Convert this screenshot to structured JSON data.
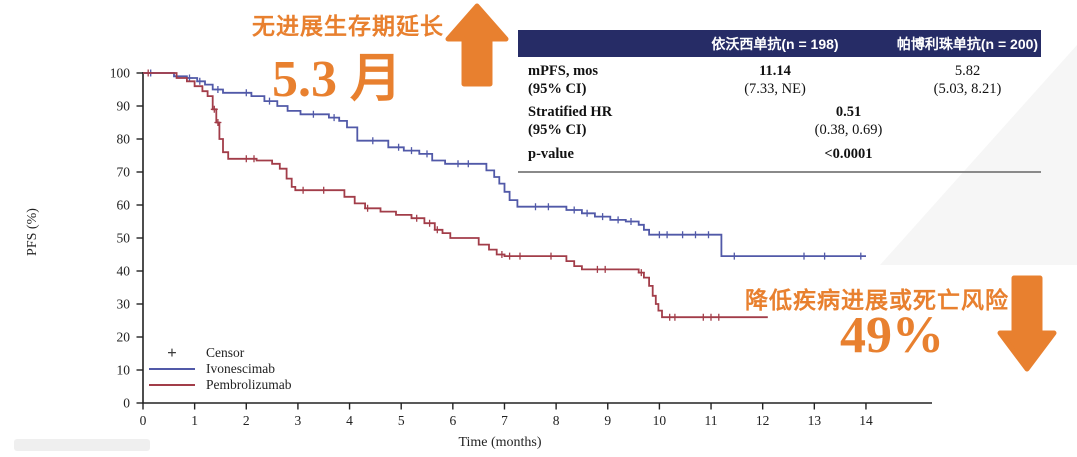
{
  "theme": {
    "orange": "#E8802F",
    "navy": "#262C66",
    "axis": "#222222",
    "table_line": "#8a8a8a"
  },
  "annotations": {
    "top": {
      "label": "无进展生存期延长",
      "value": "5.3 月",
      "direction": "up"
    },
    "bottom": {
      "label": "降低疾病进展或死亡风险",
      "value": "49%",
      "direction": "down"
    }
  },
  "table": {
    "header": {
      "col0": "",
      "col1": "依沃西单抗(n = 198)",
      "col2": "帕博利珠单抗(n = 200)"
    },
    "rows": {
      "mpfs": {
        "label": "mPFS, mos",
        "sub": "(95% CI)",
        "v1": "11.14",
        "v1sub": "(7.33, NE)",
        "v2": "5.82",
        "v2sub": "(5.03, 8.21)"
      },
      "hr": {
        "label": "Stratified HR",
        "sub": "(95% CI)",
        "value": "0.51",
        "valsub": "(0.38, 0.69)"
      },
      "p": {
        "label": "p-value",
        "value": "<0.0001"
      }
    }
  },
  "legend": {
    "items": [
      {
        "symbol": "plus",
        "label": "Censor"
      },
      {
        "symbol": "line",
        "label": "Ivonescimab"
      },
      {
        "symbol": "line",
        "label": "Pembrolizumab"
      }
    ]
  },
  "chart_data": {
    "type": "line",
    "subtype": "kaplan-meier-step",
    "title": "",
    "xlabel": "Time (months)",
    "ylabel": "PFS (%)",
    "xlim": [
      0,
      14
    ],
    "ylim": [
      0,
      100
    ],
    "x_ticks": [
      0,
      1,
      2,
      3,
      4,
      5,
      6,
      7,
      8,
      9,
      10,
      11,
      12,
      13,
      14
    ],
    "y_ticks": [
      0,
      10,
      20,
      30,
      40,
      50,
      60,
      70,
      80,
      90,
      100
    ],
    "grid": false,
    "legend_position": "inside-lower-left",
    "censor_marker": "+",
    "series": [
      {
        "name": "ivonescimab",
        "label": "Ivonescimab",
        "color": "#5159A8",
        "median_pfs_months": 11.14,
        "points": [
          [
            0,
            100
          ],
          [
            0.6,
            99
          ],
          [
            0.85,
            98.5
          ],
          [
            1.05,
            97.5
          ],
          [
            1.2,
            96.5
          ],
          [
            1.35,
            95
          ],
          [
            1.55,
            94
          ],
          [
            2.1,
            93
          ],
          [
            2.35,
            91.5
          ],
          [
            2.6,
            90
          ],
          [
            2.8,
            88.5
          ],
          [
            3.05,
            87.5
          ],
          [
            3.6,
            86.5
          ],
          [
            3.8,
            85.5
          ],
          [
            3.95,
            83.5
          ],
          [
            4.15,
            79.5
          ],
          [
            4.75,
            77.5
          ],
          [
            5.05,
            76.5
          ],
          [
            5.35,
            75.5
          ],
          [
            5.6,
            73.5
          ],
          [
            5.85,
            72.5
          ],
          [
            6.65,
            70.5
          ],
          [
            6.8,
            68.5
          ],
          [
            6.9,
            66.5
          ],
          [
            7.0,
            64
          ],
          [
            7.1,
            61.5
          ],
          [
            7.25,
            59.5
          ],
          [
            8.2,
            58.5
          ],
          [
            8.5,
            57.5
          ],
          [
            8.75,
            56.5
          ],
          [
            9.05,
            55.5
          ],
          [
            9.35,
            55
          ],
          [
            9.6,
            54
          ],
          [
            9.7,
            52.5
          ],
          [
            9.8,
            51
          ],
          [
            11.2,
            44.5
          ],
          [
            14.0,
            44.5
          ]
        ],
        "censors": [
          [
            0.15,
            100
          ],
          [
            0.9,
            98.5
          ],
          [
            1.1,
            97.5
          ],
          [
            1.45,
            95
          ],
          [
            2.0,
            94
          ],
          [
            2.45,
            91.5
          ],
          [
            3.3,
            87.5
          ],
          [
            3.7,
            86.5
          ],
          [
            4.45,
            79.5
          ],
          [
            4.95,
            77.5
          ],
          [
            5.2,
            76.5
          ],
          [
            5.5,
            75.5
          ],
          [
            6.1,
            72.5
          ],
          [
            6.3,
            72.5
          ],
          [
            7.6,
            59.5
          ],
          [
            7.85,
            59.5
          ],
          [
            8.35,
            58.5
          ],
          [
            8.6,
            57.5
          ],
          [
            8.9,
            56.5
          ],
          [
            9.2,
            55.5
          ],
          [
            9.45,
            55
          ],
          [
            10.0,
            51
          ],
          [
            10.15,
            51
          ],
          [
            10.45,
            51
          ],
          [
            10.7,
            51
          ],
          [
            10.95,
            51
          ],
          [
            11.45,
            44.5
          ],
          [
            12.8,
            44.5
          ],
          [
            13.2,
            44.5
          ],
          [
            13.9,
            44.5
          ]
        ]
      },
      {
        "name": "pembrolizumab",
        "label": "Pembrolizumab",
        "color": "#A23D49",
        "median_pfs_months": 5.82,
        "points": [
          [
            0,
            100
          ],
          [
            0.65,
            98.5
          ],
          [
            0.85,
            97.5
          ],
          [
            1.0,
            96
          ],
          [
            1.15,
            94.5
          ],
          [
            1.25,
            93
          ],
          [
            1.35,
            89
          ],
          [
            1.42,
            85
          ],
          [
            1.48,
            80
          ],
          [
            1.55,
            76
          ],
          [
            1.65,
            74
          ],
          [
            2.2,
            73.5
          ],
          [
            2.5,
            72.5
          ],
          [
            2.65,
            71
          ],
          [
            2.78,
            68
          ],
          [
            2.88,
            65.5
          ],
          [
            2.95,
            64.5
          ],
          [
            3.9,
            62.5
          ],
          [
            4.1,
            60.5
          ],
          [
            4.3,
            59
          ],
          [
            4.6,
            58
          ],
          [
            4.9,
            57
          ],
          [
            5.2,
            56
          ],
          [
            5.45,
            54.5
          ],
          [
            5.65,
            52.5
          ],
          [
            5.8,
            51.5
          ],
          [
            5.95,
            50
          ],
          [
            6.5,
            48
          ],
          [
            6.7,
            46.5
          ],
          [
            6.85,
            45
          ],
          [
            7.0,
            44.5
          ],
          [
            8.2,
            43
          ],
          [
            8.35,
            41.5
          ],
          [
            8.5,
            40.5
          ],
          [
            9.6,
            39.5
          ],
          [
            9.7,
            38
          ],
          [
            9.8,
            35.5
          ],
          [
            9.87,
            32.5
          ],
          [
            9.93,
            30
          ],
          [
            9.98,
            28
          ],
          [
            10.05,
            26
          ],
          [
            12.1,
            26
          ]
        ],
        "censors": [
          [
            0.1,
            100
          ],
          [
            1.38,
            89
          ],
          [
            1.45,
            85
          ],
          [
            2.0,
            74
          ],
          [
            2.15,
            74
          ],
          [
            3.1,
            64.5
          ],
          [
            3.5,
            64.5
          ],
          [
            4.35,
            59
          ],
          [
            5.3,
            56
          ],
          [
            5.55,
            54.5
          ],
          [
            5.7,
            52.5
          ],
          [
            6.95,
            45
          ],
          [
            7.1,
            44.5
          ],
          [
            7.3,
            44.5
          ],
          [
            7.9,
            44.5
          ],
          [
            8.8,
            40.5
          ],
          [
            8.95,
            40.5
          ],
          [
            9.65,
            39.5
          ],
          [
            10.2,
            26
          ],
          [
            10.3,
            26
          ],
          [
            10.85,
            26
          ],
          [
            11.0,
            26
          ],
          [
            11.15,
            26
          ]
        ]
      }
    ],
    "stats": {
      "stratified_hr": "0.51",
      "hr_ci": "(0.38, 0.69)",
      "p_value": "<0.0001"
    }
  }
}
